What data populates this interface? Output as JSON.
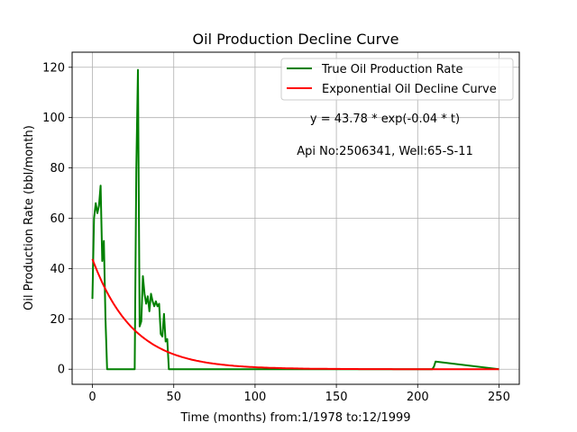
{
  "chart_data": {
    "type": "line",
    "title": "Oil Production Decline Curve",
    "xlabel": "Time (months) from:1/1978 to:12/1999",
    "ylabel": "Oil Production Rate (bbl/month)",
    "xlim": [
      -12.5,
      262.5
    ],
    "ylim": [
      -6,
      126
    ],
    "xticks": [
      0,
      50,
      100,
      150,
      200,
      250
    ],
    "yticks": [
      0,
      20,
      40,
      60,
      80,
      100,
      120
    ],
    "grid": true,
    "legend_position": "top-right",
    "annotations": [
      "y = 43.78 * exp(-0.04 * t)",
      "Api No:2506341, Well:65-S-11"
    ],
    "series": [
      {
        "name": "True Oil Production Rate",
        "color": "#008000",
        "x": [
          0,
          1,
          2,
          3,
          4,
          5,
          6,
          7,
          8,
          9,
          10,
          26,
          27,
          28,
          29,
          30,
          31,
          32,
          33,
          34,
          35,
          36,
          37,
          38,
          39,
          40,
          41,
          42,
          43,
          44,
          45,
          46,
          47,
          48,
          209,
          210,
          211,
          250
        ],
        "y": [
          28,
          60,
          66,
          62,
          65,
          73,
          43,
          51,
          20,
          0,
          0,
          0,
          80,
          119,
          17,
          19,
          37,
          30,
          26,
          29,
          23,
          30,
          27,
          25,
          27,
          25,
          26,
          14,
          13,
          22,
          11,
          12,
          0,
          0,
          0,
          1,
          3,
          0
        ]
      },
      {
        "name": "Exponential Oil Decline Curve",
        "color": "#ff0000",
        "model": {
          "a": 43.78,
          "b": -0.04,
          "x_start": 0,
          "x_end": 250
        }
      }
    ]
  }
}
